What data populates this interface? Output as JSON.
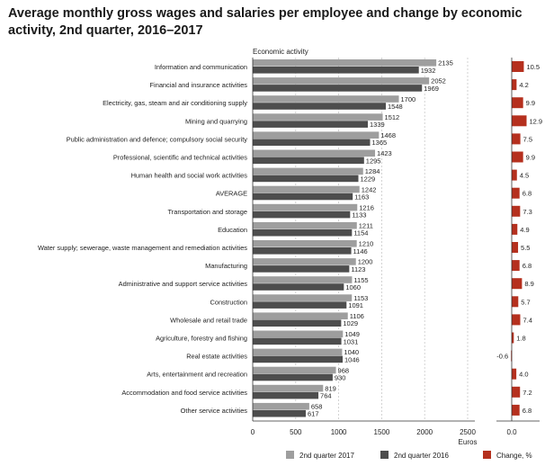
{
  "title": "Average monthly gross wages and salaries per employee and change by economic activity, 2nd quarter, 2016–2017",
  "chart_data": {
    "type": "bar",
    "orientation": "horizontal",
    "category_axis_label": "Economic activity",
    "xlabel": "Euros",
    "xlim": [
      0,
      2500
    ],
    "xticks": [
      "0",
      "500",
      "1000",
      "1500",
      "2000",
      "2500"
    ],
    "change_axis_tick": "0.0",
    "grid": "vertical-dashed",
    "legend_position": "bottom",
    "categories": [
      "Information and communication",
      "Financial and insurance activities",
      "Electricity, gas, steam and air conditioning supply",
      "Mining and quarrying",
      "Public administration and defence; compulsory social security",
      "Professional, scientific and technical activities",
      "Human health and social work activities",
      "AVERAGE",
      "Transportation and storage",
      "Education",
      "Water supply; sewerage, waste management and remediation activities",
      "Manufacturing",
      "Administrative and support service activities",
      "Construction",
      "Wholesale and retail trade",
      "Agriculture, forestry and fishing",
      "Real estate activities",
      "Arts, entertainment and recreation",
      "Accommodation and food service activities",
      "Other service activities"
    ],
    "series": [
      {
        "name": "2nd quarter 2017",
        "color": "#9e9e9e",
        "values": [
          2135,
          2052,
          1700,
          1512,
          1468,
          1423,
          1284,
          1242,
          1216,
          1211,
          1210,
          1200,
          1155,
          1153,
          1106,
          1049,
          1040,
          968,
          819,
          658
        ]
      },
      {
        "name": "2nd quarter 2016",
        "color": "#4d4d4d",
        "values": [
          1932,
          1969,
          1548,
          1339,
          1365,
          1295,
          1229,
          1163,
          1133,
          1154,
          1146,
          1123,
          1060,
          1091,
          1029,
          1031,
          1046,
          930,
          764,
          617
        ]
      },
      {
        "name": "Change, %",
        "color": "#b5301e",
        "values": [
          10.5,
          4.2,
          9.9,
          12.9,
          7.5,
          9.9,
          4.5,
          6.8,
          7.3,
          4.9,
          5.5,
          6.8,
          8.9,
          5.7,
          7.4,
          1.8,
          -0.6,
          4.0,
          7.2,
          6.8
        ]
      }
    ]
  }
}
